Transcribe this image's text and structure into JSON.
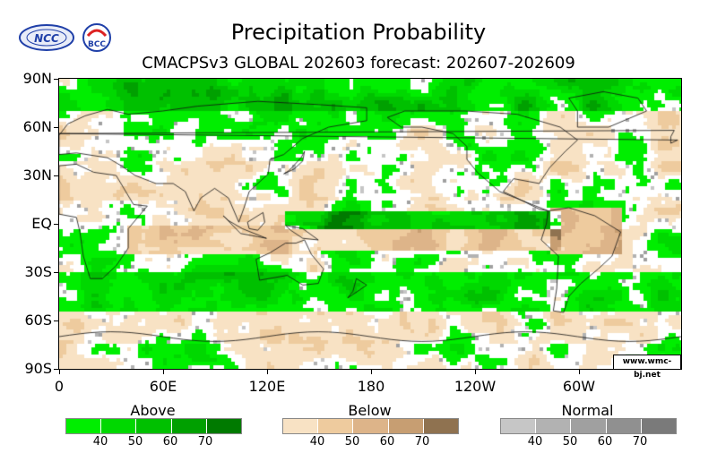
{
  "title": "Precipitation Probability",
  "subtitle": "CMACPSv3 GLOBAL 202603 forecast: 202607-202609",
  "logos": {
    "left": "NCC",
    "right": "BCC"
  },
  "credit": "www.wmc-bj.net",
  "lat_labels": [
    "90N",
    "60N",
    "30N",
    "EQ",
    "30S",
    "60S",
    "90S"
  ],
  "lon_labels": [
    "0",
    "60E",
    "120E",
    "180",
    "120W",
    "60W"
  ],
  "legend": [
    {
      "name": "Above",
      "ticks": [
        "40",
        "50",
        "60",
        "70"
      ],
      "colors": [
        "#00ee00",
        "#00d800",
        "#00c000",
        "#00a000",
        "#007a00"
      ]
    },
    {
      "name": "Below",
      "ticks": [
        "40",
        "50",
        "60",
        "70"
      ],
      "colors": [
        "#f8e2c4",
        "#eecb9e",
        "#ddb489",
        "#c79e72",
        "#8f7250"
      ]
    },
    {
      "name": "Normal",
      "ticks": [
        "40",
        "50",
        "60",
        "70"
      ],
      "colors": [
        "#c6c6c6",
        "#b2b2b2",
        "#a0a0a0",
        "#909090",
        "#7a7a7a"
      ]
    }
  ]
}
